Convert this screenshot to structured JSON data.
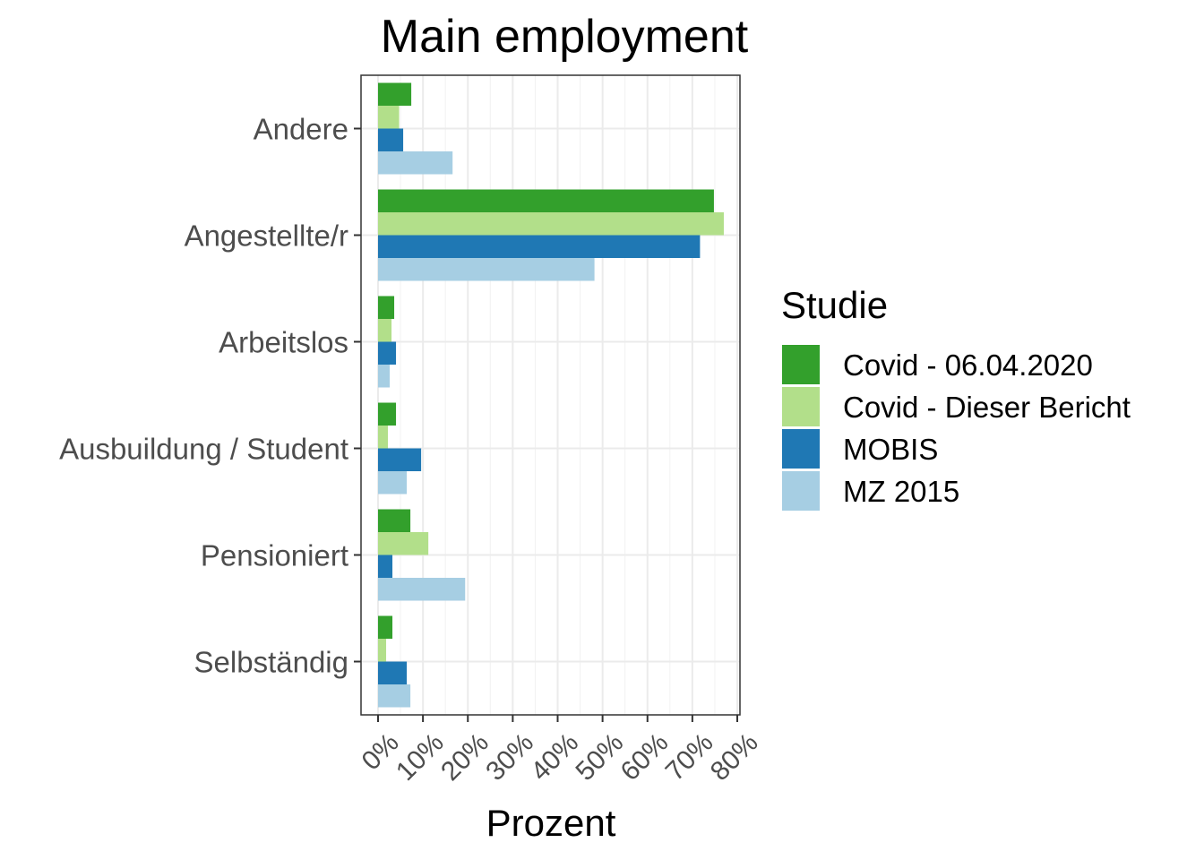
{
  "chart_data": {
    "type": "bar",
    "orientation": "horizontal",
    "title": "Main employment",
    "xlabel": "Prozent",
    "ylabel": "",
    "categories": [
      "Andere",
      "Angestellte/r",
      "Arbeitslos",
      "Ausbuildung / Student",
      "Pensioniert",
      "Selbständig"
    ],
    "xlim": [
      0,
      80
    ],
    "xticks": [
      "0%",
      "10%",
      "20%",
      "30%",
      "40%",
      "50%",
      "60%",
      "70%",
      "80%"
    ],
    "grid": true,
    "legend": {
      "title": "Studie",
      "position": "right"
    },
    "series": [
      {
        "name": "Covid - 06.04.2020",
        "color": "#33a02c",
        "values": [
          7.4,
          74.8,
          3.6,
          4.0,
          7.2,
          3.2
        ]
      },
      {
        "name": "Covid - Dieser Bericht",
        "color": "#b2df8a",
        "values": [
          4.7,
          77.0,
          3.0,
          2.2,
          11.2,
          1.8
        ]
      },
      {
        "name": "MOBIS",
        "color": "#1f78b4",
        "values": [
          5.6,
          71.7,
          4.0,
          9.6,
          3.2,
          6.4
        ]
      },
      {
        "name": "MZ 2015",
        "color": "#a6cee3",
        "values": [
          16.6,
          48.2,
          2.6,
          6.4,
          19.4,
          7.2
        ]
      }
    ]
  }
}
